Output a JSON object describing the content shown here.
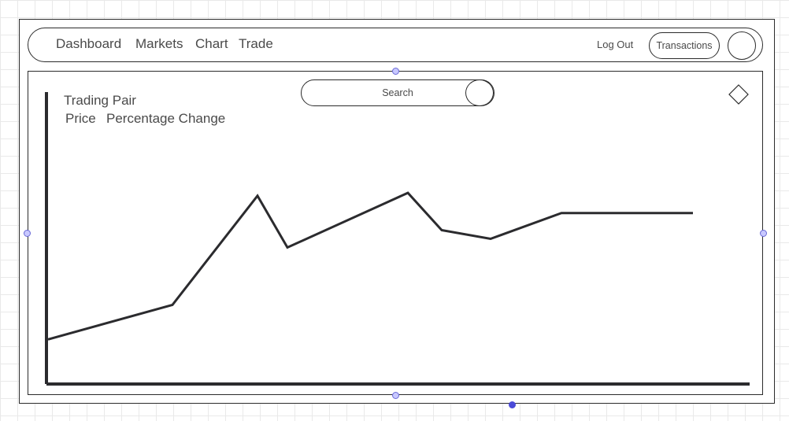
{
  "navbar": {
    "links": [
      {
        "label": "Dashboard"
      },
      {
        "label": "Markets"
      },
      {
        "label": "Chart"
      },
      {
        "label": "Trade"
      }
    ],
    "logout_label": "Log Out",
    "transactions_label": "Transactions",
    "avatar_icon": "avatar-circle"
  },
  "search": {
    "label": "Search",
    "icon": "search-circle"
  },
  "menu_icon": "diamond-icon",
  "asset": {
    "title": "Trading Pair",
    "price_label": "Price",
    "change_label": "Percentage Change"
  },
  "chart_data": {
    "type": "line",
    "title": "",
    "xlabel": "",
    "ylabel": "",
    "grid": false,
    "legend": "none",
    "x": [
      0,
      1,
      2,
      3,
      4,
      5,
      6,
      7,
      8
    ],
    "series": [
      {
        "values": [
          15,
          27,
          65,
          47,
          66,
          53,
          50,
          59,
          59
        ]
      }
    ],
    "xlim": [
      0,
      8
    ],
    "ylim": [
      0,
      100
    ],
    "line_color": "#2b2b2e"
  },
  "colors": {
    "border": "#2b2b2b",
    "grid": "#e9e9e9",
    "handle_fill": "#c8c8ff",
    "handle_stroke": "#6a6ad6",
    "handle_selected": "#4b4bd8"
  }
}
